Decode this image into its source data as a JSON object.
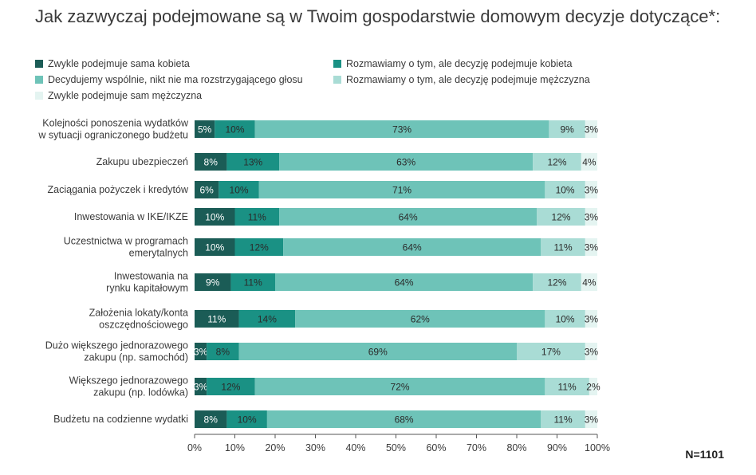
{
  "title": "Jak zazwyczaj podejmowane są w Twoim gospodarstwie domowym decyzje dotyczące*:",
  "n_label": "N=1101",
  "chart_data": {
    "type": "bar",
    "orientation": "horizontal",
    "stacked": true,
    "title": "Jak zazwyczaj podejmowane są w Twoim gospodarstwie domowym decyzje dotyczące*:",
    "categories": [
      [
        "Kolejności ponoszenia wydatków",
        "w sytuacji ograniczonego budżetu"
      ],
      [
        "Zakupu ubezpieczeń"
      ],
      [
        "Zaciągania pożyczek i kredytów"
      ],
      [
        "Inwestowania w IKE/IKZE"
      ],
      [
        "Uczestnictwa w programach",
        "emerytalnych"
      ],
      [
        "Inwestowania na",
        "rynku kapitałowym"
      ],
      [
        "Założenia lokaty/konta",
        "oszczędnościowego"
      ],
      [
        "Dużo większego jednorazowego",
        "zakupu (np. samochód)"
      ],
      [
        "Większego jednorazowego",
        "zakupu (np. lodówka)"
      ],
      [
        "Budżetu na codzienne wydatki"
      ]
    ],
    "series": [
      {
        "name": "Zwykle podejmuje sama kobieta",
        "color": "#1b5c56",
        "label_color": "light",
        "values": [
          5,
          8,
          6,
          10,
          10,
          9,
          11,
          3,
          3,
          8
        ]
      },
      {
        "name": "Rozmawiamy o tym, ale decyzję podejmuje kobieta",
        "color": "#1a9184",
        "label_color": "dark",
        "values": [
          10,
          13,
          10,
          11,
          12,
          11,
          14,
          8,
          12,
          10
        ]
      },
      {
        "name": "Decydujemy wspólnie, nikt nie ma rozstrzygającego głosu",
        "color": "#6ec3b8",
        "label_color": "dark",
        "values": [
          73,
          63,
          71,
          64,
          64,
          64,
          62,
          69,
          72,
          68
        ]
      },
      {
        "name": "Rozmawiamy o tym, ale decyzję podejmuje mężczyzna",
        "color": "#a9dcd5",
        "label_color": "dark",
        "values": [
          9,
          12,
          10,
          12,
          11,
          12,
          10,
          17,
          11,
          11
        ]
      },
      {
        "name": "Zwykle podejmuje sam mężczyzna",
        "color": "#e4f4f1",
        "label_color": "dark",
        "values": [
          3,
          4,
          3,
          3,
          3,
          4,
          3,
          3,
          2,
          3
        ]
      }
    ],
    "xlim": [
      0,
      100
    ],
    "xticks": [
      "0%",
      "10%",
      "20%",
      "30%",
      "40%",
      "50%",
      "60%",
      "70%",
      "80%",
      "90%",
      "100%"
    ],
    "value_suffix": "%",
    "grid": false,
    "legend_placement": "top"
  }
}
